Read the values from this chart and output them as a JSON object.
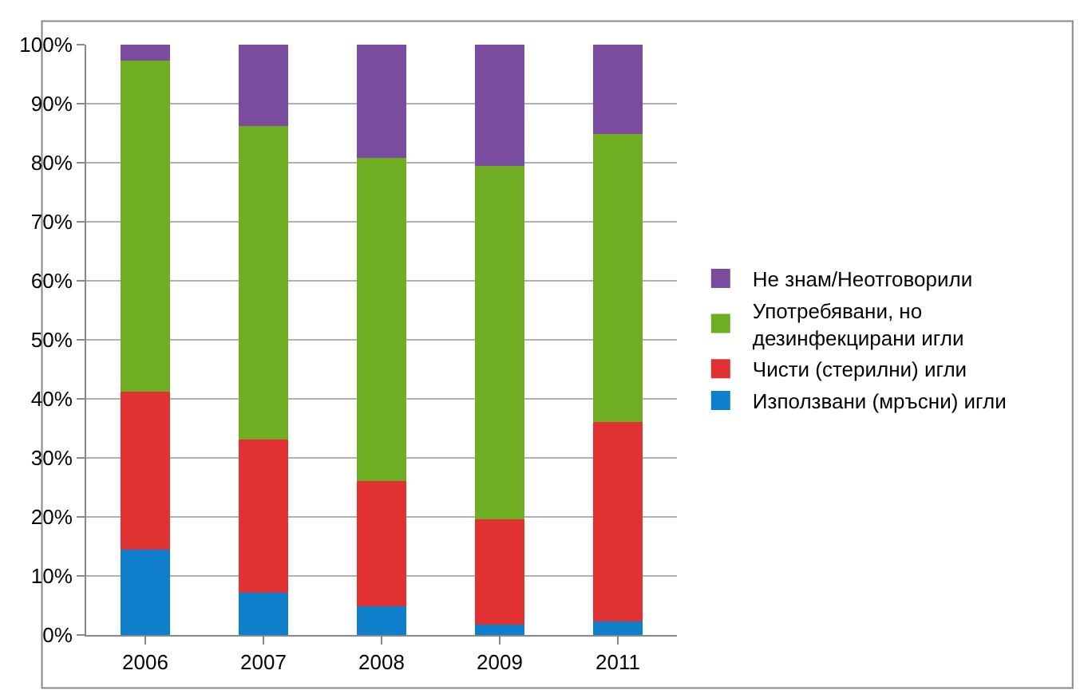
{
  "chart_data": {
    "type": "bar",
    "stacked": true,
    "categories": [
      "2006",
      "2007",
      "2008",
      "2009",
      "2011"
    ],
    "series": [
      {
        "name": "Използвани (мръсни) игли",
        "color": "#0f7fcc",
        "values": [
          14.5,
          7.1,
          4.9,
          1.7,
          2.3
        ]
      },
      {
        "name": "Чисти (стерилни) игли",
        "color": "#e03232",
        "values": [
          26.7,
          26.0,
          21.2,
          17.9,
          33.8
        ]
      },
      {
        "name": "Употребявани, но\nдезинфекцирани игли",
        "color": "#6fae23",
        "values": [
          56.1,
          53.1,
          54.7,
          59.9,
          48.8
        ]
      },
      {
        "name": "Не знам/Неотговорили",
        "color": "#7a4ca0",
        "values": [
          2.7,
          13.8,
          19.2,
          20.5,
          15.1
        ]
      }
    ],
    "ylim": [
      0,
      100
    ],
    "yticks": [
      {
        "value": 0,
        "label": "0%"
      },
      {
        "value": 10,
        "label": "10%"
      },
      {
        "value": 20,
        "label": "20%"
      },
      {
        "value": 30,
        "label": "30%"
      },
      {
        "value": 40,
        "label": "40%"
      },
      {
        "value": 50,
        "label": "50%"
      },
      {
        "value": 60,
        "label": "60%"
      },
      {
        "value": 70,
        "label": "70%"
      },
      {
        "value": 80,
        "label": "80%"
      },
      {
        "value": 90,
        "label": "90%"
      },
      {
        "value": 100,
        "label": "100%"
      }
    ],
    "grid": "y",
    "legend": "right"
  }
}
